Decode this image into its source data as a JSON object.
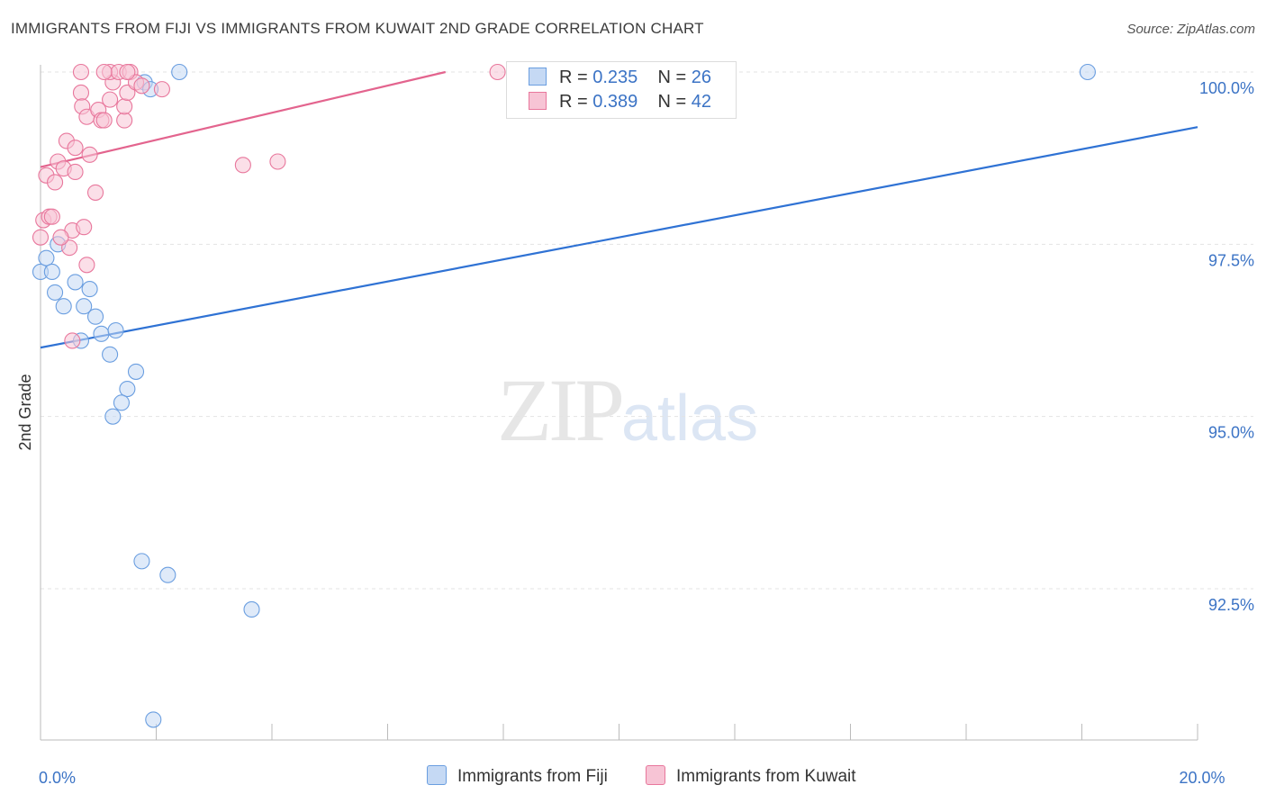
{
  "title": "IMMIGRANTS FROM FIJI VS IMMIGRANTS FROM KUWAIT 2ND GRADE CORRELATION CHART",
  "source": "Source: ZipAtlas.com",
  "watermark": {
    "zip": "ZIP",
    "atlas": "atlas"
  },
  "legend": {
    "fiji": {
      "r_label": "R = ",
      "r_value": "0.235",
      "n_label": "N = ",
      "n_value": "26"
    },
    "kuwait": {
      "r_label": "R = ",
      "r_value": "0.389",
      "n_label": "N = ",
      "n_value": "42"
    }
  },
  "bottom_legend": {
    "fiji": "Immigrants from Fiji",
    "kuwait": "Immigrants from Kuwait"
  },
  "chart_data": {
    "type": "scatter",
    "title": "IMMIGRANTS FROM FIJI VS IMMIGRANTS FROM KUWAIT 2ND GRADE CORRELATION CHART",
    "xlabel": "",
    "ylabel": "2nd Grade",
    "xlim": [
      0,
      20
    ],
    "ylim": [
      90.0,
      100.25
    ],
    "x_ticks": [
      0,
      2,
      4,
      6,
      8,
      10,
      12,
      14,
      16,
      18,
      20
    ],
    "x_tick_labels": [
      {
        "x": 0,
        "label": "0.0%"
      },
      {
        "x": 20,
        "label": "20.0%"
      }
    ],
    "y_ticks": [
      92.5,
      95.0,
      97.5,
      100.0
    ],
    "y_tick_labels": [
      "92.5%",
      "95.0%",
      "97.5%",
      "100.0%"
    ],
    "grid": true,
    "series": [
      {
        "name": "Immigrants from Fiji",
        "color": "#6a9ee0",
        "fill": "#c5d9f4",
        "points": [
          [
            0.0,
            97.1
          ],
          [
            0.1,
            97.3
          ],
          [
            0.3,
            97.5
          ],
          [
            0.2,
            97.1
          ],
          [
            0.25,
            96.8
          ],
          [
            0.4,
            96.6
          ],
          [
            0.6,
            96.95
          ],
          [
            0.75,
            96.6
          ],
          [
            0.85,
            96.85
          ],
          [
            0.95,
            96.45
          ],
          [
            1.05,
            96.2
          ],
          [
            1.3,
            96.25
          ],
          [
            0.7,
            96.1
          ],
          [
            1.2,
            95.9
          ],
          [
            1.65,
            95.65
          ],
          [
            1.5,
            95.4
          ],
          [
            1.4,
            95.2
          ],
          [
            1.25,
            95.0
          ],
          [
            1.75,
            92.9
          ],
          [
            2.2,
            92.7
          ],
          [
            3.65,
            92.2
          ],
          [
            1.95,
            90.6
          ],
          [
            2.4,
            100.0
          ],
          [
            1.8,
            99.85
          ],
          [
            1.9,
            99.75
          ],
          [
            18.1,
            100.0
          ]
        ],
        "trend": {
          "x": [
            0.0,
            20.0
          ],
          "y": [
            96.0,
            99.2
          ]
        }
      },
      {
        "name": "Immigrants from Kuwait",
        "color": "#e8779c",
        "fill": "#f7c4d5",
        "points": [
          [
            0.0,
            97.6
          ],
          [
            0.05,
            97.85
          ],
          [
            0.15,
            97.9
          ],
          [
            0.1,
            98.5
          ],
          [
            0.25,
            98.4
          ],
          [
            0.3,
            98.7
          ],
          [
            0.4,
            98.6
          ],
          [
            0.45,
            99.0
          ],
          [
            0.6,
            98.9
          ],
          [
            0.6,
            98.55
          ],
          [
            0.7,
            99.7
          ],
          [
            0.72,
            99.5
          ],
          [
            0.8,
            99.35
          ],
          [
            0.85,
            98.8
          ],
          [
            0.95,
            98.25
          ],
          [
            1.0,
            99.45
          ],
          [
            1.05,
            99.3
          ],
          [
            1.1,
            99.3
          ],
          [
            1.2,
            99.6
          ],
          [
            1.25,
            99.85
          ],
          [
            1.2,
            100.0
          ],
          [
            1.35,
            100.0
          ],
          [
            1.45,
            99.3
          ],
          [
            1.45,
            99.5
          ],
          [
            1.5,
            99.7
          ],
          [
            1.55,
            100.0
          ],
          [
            1.65,
            99.85
          ],
          [
            1.75,
            99.8
          ],
          [
            2.1,
            99.75
          ],
          [
            0.55,
            97.7
          ],
          [
            0.5,
            97.45
          ],
          [
            0.75,
            97.75
          ],
          [
            0.8,
            97.2
          ],
          [
            0.55,
            96.1
          ],
          [
            0.7,
            100.0
          ],
          [
            1.1,
            100.0
          ],
          [
            1.5,
            100.0
          ],
          [
            3.5,
            98.65
          ],
          [
            4.1,
            98.7
          ],
          [
            7.9,
            100.0
          ],
          [
            0.35,
            97.6
          ],
          [
            0.2,
            97.9
          ]
        ],
        "trend": {
          "x": [
            0.0,
            7.0
          ],
          "y": [
            98.62,
            100.0
          ]
        }
      }
    ]
  }
}
